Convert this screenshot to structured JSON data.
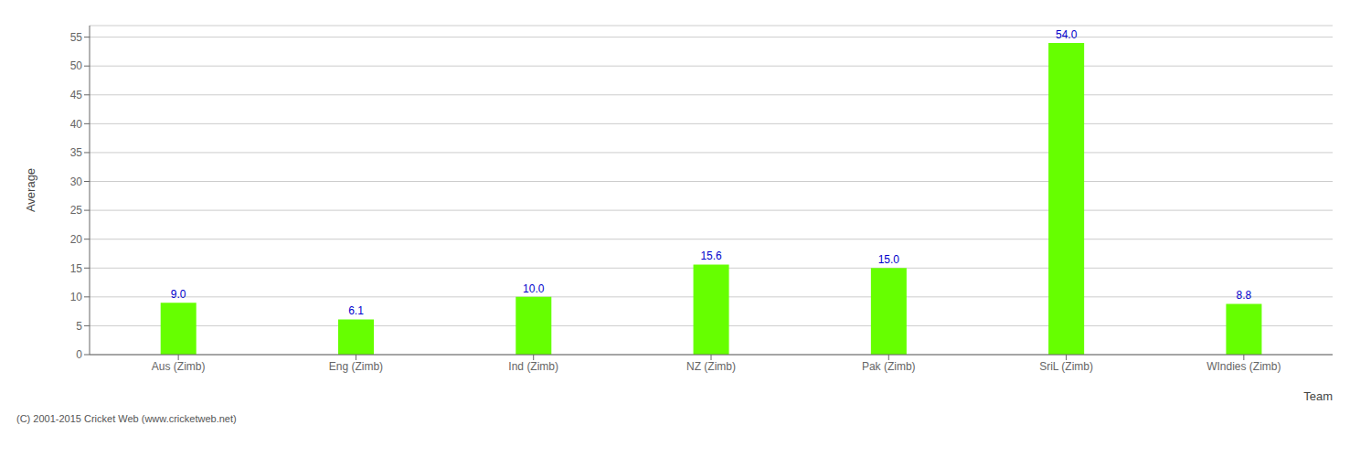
{
  "chart_data": {
    "type": "bar",
    "categories": [
      "Aus (Zimb)",
      "Eng (Zimb)",
      "Ind (Zimb)",
      "NZ (Zimb)",
      "Pak (Zimb)",
      "SriL (Zimb)",
      "WIndies (Zimb)"
    ],
    "values": [
      9.0,
      6.1,
      10.0,
      15.6,
      15.0,
      54.0,
      8.8
    ],
    "value_labels": [
      "9.0",
      "6.1",
      "10.0",
      "15.6",
      "15.0",
      "54.0",
      "8.8"
    ],
    "data_labels": true,
    "color": "#66ff00",
    "xlabel": "Team",
    "ylabel": "Average",
    "ylim": [
      0,
      57
    ],
    "yticks": [
      0,
      5,
      10,
      15,
      20,
      25,
      30,
      35,
      40,
      45,
      50,
      55
    ],
    "grid": true,
    "annotations": [
      "(C) 2001-2015 Cricket Web (www.cricketweb.net)"
    ]
  }
}
